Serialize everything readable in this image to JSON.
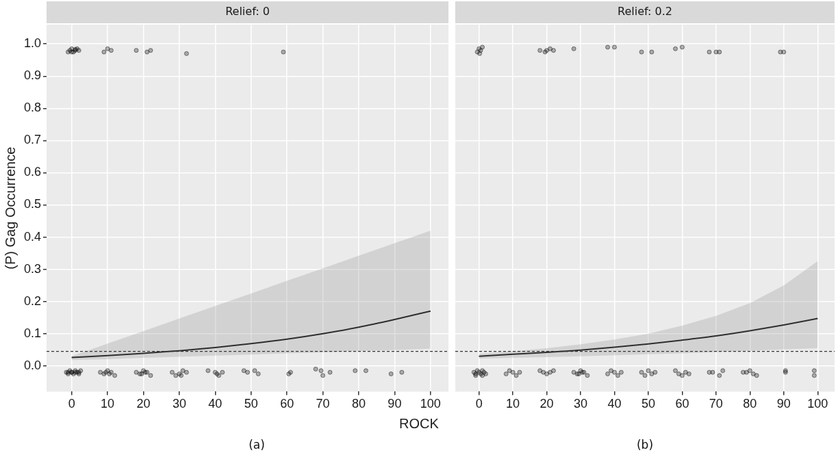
{
  "chart_data": [
    {
      "type": "scatter",
      "title": "Relief: 0",
      "ylabel": "(P) Gag Occurrence",
      "xlabel": "ROCK",
      "annotations": [
        "(a)"
      ],
      "xlim": [
        -7,
        105
      ],
      "xticks": [
        0,
        10,
        20,
        30,
        40,
        50,
        60,
        70,
        80,
        90,
        100
      ],
      "ylim": [
        -0.08,
        1.06
      ],
      "yticks": [
        {
          "value": 0,
          "label": "0.0"
        },
        {
          "value": 0.1,
          "label": "0.1"
        },
        {
          "value": 0.2,
          "label": "0.2"
        },
        {
          "value": 0.3,
          "label": "0.3"
        },
        {
          "value": 0.4,
          "label": "0.4"
        },
        {
          "value": 0.5,
          "label": "0.5"
        },
        {
          "value": 0.6,
          "label": "0.6"
        },
        {
          "value": 0.7,
          "label": "0.7"
        },
        {
          "value": 0.8,
          "label": "0.8"
        },
        {
          "value": 0.9,
          "label": "0.9"
        },
        {
          "value": 1,
          "label": "1.0"
        }
      ],
      "grid": true,
      "legend": false,
      "marker": "circle",
      "ref_lines": [
        {
          "axis": "y",
          "value": 0.045,
          "line_style": "dashed",
          "color": "#333333"
        }
      ],
      "series": [
        {
          "color": "#000000",
          "x": [
            -1,
            -0.5,
            0,
            0.5,
            1,
            1.5,
            2,
            0,
            1,
            9,
            10,
            11,
            18,
            21,
            22,
            32,
            59,
            -1.5,
            -1,
            -0.5,
            0,
            0.5,
            1,
            1.5,
            2,
            2.5,
            -1,
            0,
            1,
            2,
            8,
            9,
            10,
            11,
            12,
            9.5,
            10.5,
            18,
            19,
            20,
            21,
            22,
            20.5,
            19.5,
            28,
            29,
            30,
            31,
            32,
            30.5,
            38,
            40,
            41,
            42,
            40.5,
            48,
            49,
            51,
            52,
            61,
            60.5,
            68,
            70,
            72,
            69.5,
            79,
            82,
            89,
            92
          ],
          "values": [
            0.975,
            0.98,
            0.985,
            0.975,
            0.98,
            0.985,
            0.98,
            0.975,
            0.983,
            0.975,
            0.985,
            0.98,
            0.98,
            0.975,
            0.98,
            0.97,
            0.975,
            -0.02,
            -0.025,
            -0.015,
            -0.02,
            -0.025,
            -0.015,
            -0.02,
            -0.025,
            -0.015,
            -0.02,
            -0.02,
            -0.02,
            -0.02,
            -0.02,
            -0.025,
            -0.015,
            -0.02,
            -0.03,
            -0.02,
            -0.025,
            -0.02,
            -0.025,
            -0.015,
            -0.02,
            -0.03,
            -0.02,
            -0.025,
            -0.02,
            -0.03,
            -0.025,
            -0.015,
            -0.02,
            -0.03,
            -0.015,
            -0.02,
            -0.03,
            -0.02,
            -0.025,
            -0.015,
            -0.02,
            -0.015,
            -0.025,
            -0.02,
            -0.025,
            -0.01,
            -0.03,
            -0.02,
            -0.015,
            -0.015,
            -0.015,
            -0.025,
            -0.02
          ]
        },
        {
          "type": "line",
          "color": "#000000",
          "marker": "none",
          "x": [
            0,
            10,
            20,
            30,
            40,
            50,
            60,
            70,
            80,
            90,
            100
          ],
          "values": [
            0.026,
            0.032,
            0.039,
            0.047,
            0.057,
            0.069,
            0.083,
            0.1,
            0.12,
            0.144,
            0.17
          ],
          "lower": [
            0.018,
            0.021,
            0.025,
            0.028,
            0.032,
            0.035,
            0.039,
            0.042,
            0.046,
            0.049,
            0.053
          ],
          "upper": [
            0.03,
            0.069,
            0.108,
            0.147,
            0.186,
            0.225,
            0.264,
            0.303,
            0.342,
            0.381,
            0.42
          ]
        }
      ]
    },
    {
      "type": "scatter",
      "title": "Relief: 0.2",
      "annotations": [
        "(b)"
      ],
      "tick_labels": "x",
      "xlim": [
        -7,
        105
      ],
      "xticks": [
        0,
        10,
        20,
        30,
        40,
        50,
        60,
        70,
        80,
        90,
        100
      ],
      "ylim": [
        -0.08,
        1.06
      ],
      "yticks": [
        0,
        0.1,
        0.2,
        0.3,
        0.4,
        0.5,
        0.6,
        0.7,
        0.8,
        0.9,
        1
      ],
      "grid": true,
      "legend": false,
      "marker": "circle",
      "ref_lines": [
        {
          "axis": "y",
          "value": 0.045,
          "line_style": "dashed",
          "color": "#333333"
        }
      ],
      "series": [
        {
          "color": "#000000",
          "x": [
            -0.5,
            0,
            0.5,
            1,
            0.2,
            18,
            19.5,
            20,
            21,
            22,
            28,
            38,
            40,
            48,
            51,
            58,
            60,
            68,
            70,
            71,
            89,
            90,
            -1.5,
            -1,
            -0.5,
            0,
            0.5,
            1,
            1.5,
            2,
            -1,
            1,
            8,
            9,
            10,
            11,
            12,
            18,
            19,
            20,
            21,
            22,
            28,
            29,
            30,
            31,
            32,
            29.5,
            30.5,
            38,
            39,
            40,
            41,
            42,
            48,
            49,
            50,
            51,
            52,
            58,
            59,
            60,
            61,
            62,
            68,
            69,
            71,
            72,
            78,
            79,
            80,
            81,
            82,
            90.5,
            90.5,
            99,
            99
          ],
          "values": [
            0.975,
            0.985,
            0.98,
            0.99,
            0.97,
            0.98,
            0.975,
            0.98,
            0.985,
            0.98,
            0.985,
            0.99,
            0.99,
            0.975,
            0.975,
            0.985,
            0.99,
            0.975,
            0.975,
            0.975,
            0.975,
            0.975,
            -0.02,
            -0.025,
            -0.015,
            -0.02,
            -0.025,
            -0.015,
            -0.02,
            -0.025,
            -0.03,
            -0.03,
            -0.025,
            -0.015,
            -0.02,
            -0.03,
            -0.02,
            -0.015,
            -0.02,
            -0.025,
            -0.02,
            -0.015,
            -0.02,
            -0.025,
            -0.015,
            -0.02,
            -0.03,
            -0.025,
            -0.02,
            -0.025,
            -0.015,
            -0.02,
            -0.03,
            -0.02,
            -0.02,
            -0.03,
            -0.015,
            -0.025,
            -0.02,
            -0.015,
            -0.025,
            -0.03,
            -0.02,
            -0.025,
            -0.02,
            -0.02,
            -0.03,
            -0.015,
            -0.02,
            -0.02,
            -0.015,
            -0.025,
            -0.03,
            -0.015,
            -0.02,
            -0.03,
            -0.015
          ]
        },
        {
          "type": "line",
          "color": "#000000",
          "marker": "none",
          "x": [
            0,
            10,
            20,
            30,
            40,
            50,
            60,
            70,
            80,
            90,
            100
          ],
          "values": [
            0.03,
            0.036,
            0.042,
            0.049,
            0.058,
            0.068,
            0.08,
            0.093,
            0.109,
            0.127,
            0.147
          ],
          "lower": [
            0.023,
            0.025,
            0.027,
            0.03,
            0.033,
            0.036,
            0.039,
            0.043,
            0.047,
            0.051,
            0.055
          ],
          "upper": [
            0.037,
            0.045,
            0.055,
            0.067,
            0.082,
            0.1,
            0.125,
            0.155,
            0.195,
            0.25,
            0.325
          ]
        }
      ]
    }
  ]
}
